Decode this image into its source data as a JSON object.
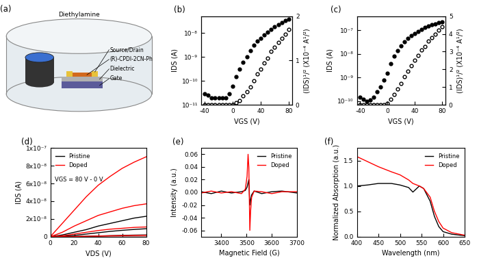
{
  "diagram": {
    "title": "(a)",
    "labels": [
      "Diethylamine",
      "Source/Drain",
      "(R)-CPDI-2CN-Ph",
      "Dielectric",
      "Gate"
    ]
  },
  "chart_data": [
    {
      "type": "scatter",
      "title": "(b)",
      "x_label": "VGS (V)",
      "y_label": "IDS (A)",
      "y2_label": "(IDS)¹/² (X10⁻⁴ A¹/²)",
      "log": "y",
      "xlim": [
        -45,
        85
      ],
      "xticks": [
        -40,
        0,
        40,
        80
      ],
      "ylim": [
        1e-11,
        5e-08
      ],
      "yticks": [
        {
          "value": 1e-11,
          "label": "10⁻¹¹"
        },
        {
          "value": 1e-10,
          "label": "10⁻¹⁰"
        },
        {
          "value": 1e-09,
          "label": "10⁻⁹"
        },
        {
          "value": 1e-08,
          "label": "10⁻⁸"
        }
      ],
      "y2lim": [
        0,
        2
      ],
      "y2ticks": [
        0,
        1,
        2
      ],
      "x": [
        -40,
        -35,
        -30,
        -25,
        -20,
        -15,
        -10,
        -5,
        0,
        5,
        10,
        15,
        20,
        25,
        30,
        35,
        40,
        45,
        50,
        55,
        60,
        65,
        70,
        75,
        80
      ],
      "series": [
        {
          "color": "#000000",
          "marker": "filled_circle",
          "values": [
            3e-11,
            2.5e-11,
            2e-11,
            2e-11,
            2e-11,
            2e-11,
            2e-11,
            3e-11,
            6e-11,
            1.5e-10,
            3e-10,
            6e-10,
            1e-09,
            1.8e-09,
            3e-09,
            4.5e-09,
            6e-09,
            8e-09,
            1.1e-08,
            1.4e-08,
            1.8e-08,
            2.2e-08,
            2.7e-08,
            3.2e-08,
            3.7e-08
          ]
        },
        {
          "color": "#000000",
          "marker": "open_circle",
          "axis": "y2",
          "values": [
            0,
            0,
            0,
            0,
            0,
            0,
            0,
            0,
            0,
            0.05,
            0.1,
            0.2,
            0.3,
            0.4,
            0.55,
            0.7,
            0.8,
            0.95,
            1.05,
            1.2,
            1.3,
            1.4,
            1.5,
            1.6,
            1.7
          ]
        }
      ]
    },
    {
      "type": "scatter",
      "title": "(c)",
      "x_label": "VGS (V)",
      "y_label": "IDS (A)",
      "y2_label": "(IDS)¹/² (X10⁻⁴ A¹/²)",
      "log": "y",
      "xlim": [
        -45,
        85
      ],
      "xticks": [
        -40,
        0,
        40,
        80
      ],
      "ylim": [
        7e-11,
        4e-07
      ],
      "yticks": [
        {
          "value": 1e-10,
          "label": "10⁻¹⁰"
        },
        {
          "value": 1e-09,
          "label": "10⁻⁹"
        },
        {
          "value": 1e-08,
          "label": "10⁻⁸"
        },
        {
          "value": 1e-07,
          "label": "10⁻⁷"
        }
      ],
      "y2lim": [
        0,
        5
      ],
      "y2ticks": [
        0,
        1,
        2,
        3,
        4,
        5
      ],
      "x": [
        -40,
        -35,
        -30,
        -25,
        -20,
        -15,
        -10,
        -5,
        0,
        5,
        10,
        15,
        20,
        25,
        30,
        35,
        40,
        45,
        50,
        55,
        60,
        65,
        70,
        75,
        80
      ],
      "series": [
        {
          "color": "#000000",
          "marker": "filled_circle",
          "values": [
            1.5e-10,
            1.2e-10,
            1e-10,
            1.1e-10,
            1.5e-10,
            2.5e-10,
            4e-10,
            8e-10,
            1.5e-09,
            4e-09,
            8e-09,
            1.4e-08,
            2.2e-08,
            3.2e-08,
            4.5e-08,
            6e-08,
            7.5e-08,
            9e-08,
            1.1e-07,
            1.3e-07,
            1.5e-07,
            1.7e-07,
            1.9e-07,
            2.1e-07,
            2.3e-07
          ]
        },
        {
          "color": "#000000",
          "marker": "open_circle",
          "axis": "y2",
          "values": [
            0,
            0,
            0,
            0,
            0,
            0,
            0,
            0,
            0.1,
            0.3,
            0.6,
            0.9,
            1.2,
            1.6,
            1.9,
            2.2,
            2.5,
            2.8,
            3.1,
            3.3,
            3.6,
            3.8,
            4.0,
            4.2,
            4.4
          ]
        }
      ]
    },
    {
      "type": "line",
      "title": "(d)",
      "x_label": "VDS (V)",
      "y_label": "IDS (A)",
      "annotation": "VGS = 80 V - 0 V",
      "legend": "upper left",
      "xlim": [
        0,
        80
      ],
      "xticks": [
        0,
        20,
        40,
        60,
        80
      ],
      "ylim": [
        0,
        1e-07
      ],
      "yticks": [
        0,
        {
          "value": 2e-08,
          "label": "2x10⁻⁸"
        },
        {
          "value": 4e-08,
          "label": "4x10⁻⁸"
        },
        {
          "value": 6e-08,
          "label": "6x10⁻⁸"
        },
        {
          "value": 8e-08,
          "label": "8x10⁻⁸"
        },
        {
          "value": 1e-07,
          "label": "1x10⁻⁷"
        }
      ],
      "x": [
        0,
        10,
        20,
        30,
        40,
        50,
        60,
        70,
        80
      ],
      "series": [
        {
          "name": "Pristine",
          "color": "#000000",
          "values": [
            0,
            2e-09,
            5e-09,
            8e-09,
            1.2e-08,
            1.5e-08,
            1.8e-08,
            2.1e-08,
            2.3e-08
          ]
        },
        {
          "name": "Pristine",
          "color": "#000000",
          "values": [
            0,
            5e-10,
            1.5e-09,
            3e-09,
            4.5e-09,
            6e-09,
            7.2e-09,
            8.2e-09,
            9e-09
          ]
        },
        {
          "name": "Pristine",
          "color": "#000000",
          "values": [
            0,
            0,
            2e-10,
            5e-10,
            8e-10,
            1.2e-09,
            1.5e-09,
            1.8e-09,
            2e-09
          ]
        },
        {
          "name": "Pristine",
          "color": "#000000",
          "values": [
            0,
            0,
            0,
            0,
            0,
            0,
            0,
            0,
            0
          ]
        },
        {
          "name": "Doped",
          "color": "#ff0000",
          "values": [
            0,
            1.5e-08,
            3e-08,
            4.5e-08,
            5.8e-08,
            6.8e-08,
            7.7e-08,
            8.4e-08,
            9e-08
          ]
        },
        {
          "name": "Doped",
          "color": "#ff0000",
          "values": [
            0,
            5e-09,
            1.2e-08,
            1.8e-08,
            2.4e-08,
            2.8e-08,
            3.2e-08,
            3.5e-08,
            3.7e-08
          ]
        },
        {
          "name": "Doped",
          "color": "#ff0000",
          "values": [
            0,
            1e-09,
            3e-09,
            5e-09,
            7e-09,
            8.5e-09,
            9.5e-09,
            1.05e-08,
            1.1e-08
          ]
        },
        {
          "name": "Doped",
          "color": "#ff0000",
          "values": [
            0,
            0,
            2e-10,
            5e-10,
            8e-10,
            1e-09,
            1.2e-09,
            1.4e-09,
            1.5e-09
          ]
        },
        {
          "name": "Doped",
          "color": "#ff0000",
          "values": [
            0,
            0,
            0,
            0,
            0,
            0,
            0,
            0,
            0
          ]
        }
      ]
    },
    {
      "type": "line",
      "title": "(e)",
      "x_label": "Magnetic Field (G)",
      "y_label": "Intensity (a.u.)",
      "legend": "upper right",
      "xlim": [
        3320,
        3700
      ],
      "xticks": [
        3400,
        3500,
        3600,
        3700
      ],
      "ylim": [
        -0.07,
        0.07
      ],
      "yticks": [
        -0.06,
        -0.04,
        -0.02,
        {
          "value": 0,
          "label": "0.00"
        },
        0.02,
        0.04,
        0.06
      ],
      "x": [
        3320,
        3360,
        3400,
        3440,
        3480,
        3495,
        3502,
        3506,
        3509,
        3513,
        3516,
        3520,
        3530,
        3560,
        3600,
        3640,
        3700
      ],
      "series": [
        {
          "name": "Pristine",
          "color": "#000000",
          "values": [
            0.001,
            -0.002,
            0.002,
            -0.001,
            0.001,
            0.003,
            0.008,
            0.015,
            0.02,
            -0.02,
            -0.012,
            -0.004,
            0.002,
            -0.002,
            0.001,
            0.002,
            -0.001
          ]
        },
        {
          "name": "Doped",
          "color": "#ff0000",
          "values": [
            -0.001,
            0.002,
            -0.001,
            0.001,
            -0.002,
            0.005,
            0.025,
            0.06,
            0.04,
            -0.06,
            -0.03,
            -0.008,
            0.002,
            0.001,
            -0.002,
            0.001,
            0.001
          ]
        }
      ]
    },
    {
      "type": "line",
      "title": "(f)",
      "x_label": "Wavelength (nm)",
      "y_label": "Normalized Absorption (a.u.)",
      "legend": "upper right",
      "xlim": [
        400,
        650
      ],
      "xticks": [
        400,
        450,
        500,
        550,
        600,
        650
      ],
      "ylim": [
        0,
        1.75
      ],
      "yticks": [
        0.0,
        0.5,
        1.0,
        1.5
      ],
      "x": [
        400,
        425,
        450,
        480,
        500,
        520,
        530,
        545,
        555,
        570,
        580,
        590,
        600,
        620,
        650
      ],
      "series": [
        {
          "name": "Pristine",
          "color": "#000000",
          "values": [
            1.0,
            1.02,
            1.05,
            1.05,
            1.02,
            0.97,
            0.88,
            1.0,
            0.95,
            0.7,
            0.4,
            0.2,
            0.1,
            0.05,
            0.02
          ]
        },
        {
          "name": "Doped",
          "color": "#ff0000",
          "values": [
            1.58,
            1.48,
            1.38,
            1.28,
            1.22,
            1.12,
            1.05,
            1.0,
            0.95,
            0.78,
            0.5,
            0.3,
            0.17,
            0.08,
            0.03
          ]
        }
      ]
    }
  ]
}
